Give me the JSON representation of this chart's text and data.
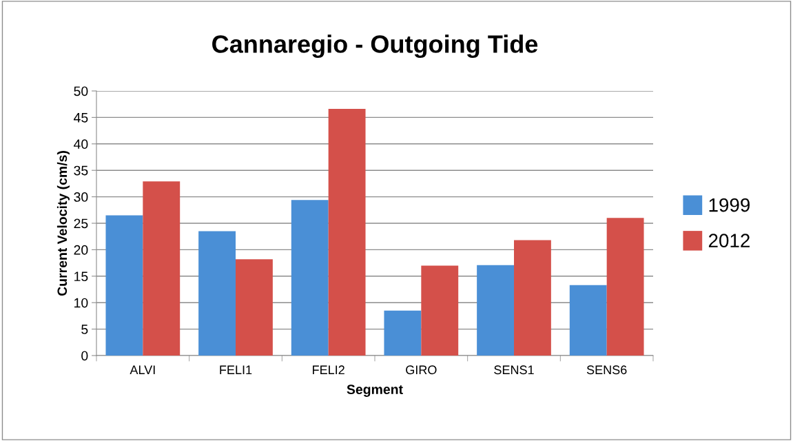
{
  "chart_data": {
    "type": "bar",
    "title": "Cannaregio - Outgoing Tide",
    "xlabel": "Segment",
    "ylabel": "Current Velocity (cm/s)",
    "categories": [
      "ALVI",
      "FELI1",
      "FELI2",
      "GIRO",
      "SENS1",
      "SENS6"
    ],
    "series": [
      {
        "name": "1999",
        "color": "#4a8fd6",
        "values": [
          26.5,
          23.5,
          29.4,
          8.5,
          17.1,
          13.3
        ]
      },
      {
        "name": "2012",
        "color": "#d4504a",
        "values": [
          32.9,
          18.2,
          46.6,
          17.0,
          21.8,
          26.0
        ]
      }
    ],
    "ylim": [
      0,
      50
    ],
    "yticks": [
      0,
      5,
      10,
      15,
      20,
      25,
      30,
      35,
      40,
      45,
      50
    ],
    "grid": "y",
    "legend": "right"
  }
}
